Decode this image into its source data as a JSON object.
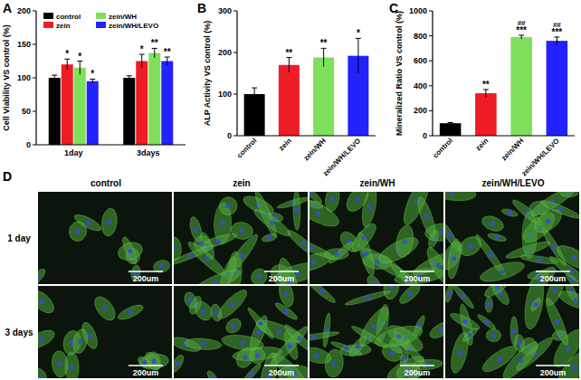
{
  "chart_data": [
    {
      "type": "bar",
      "title": "A",
      "y_label": "Cell Viability VS control (%)",
      "categories": [
        "1day",
        "3days"
      ],
      "series": [
        {
          "name": "control",
          "color": "#000000",
          "values": [
            100,
            100
          ],
          "errors": [
            4,
            3
          ],
          "annotations": [
            null,
            null
          ]
        },
        {
          "name": "zein",
          "color": "#ee1c25",
          "values": [
            120,
            125
          ],
          "errors": [
            8,
            10
          ],
          "annotations": [
            "*",
            "*"
          ]
        },
        {
          "name": "zein/WH",
          "color": "#7ee05a",
          "values": [
            115,
            137
          ],
          "errors": [
            10,
            7
          ],
          "annotations": [
            "*",
            "**"
          ]
        },
        {
          "name": "zein/WH/LEVO",
          "color": "#2222ff",
          "values": [
            95,
            125
          ],
          "errors": [
            3,
            6
          ],
          "annotations": [
            "*",
            "**"
          ]
        }
      ],
      "ylim": [
        0,
        200
      ],
      "yticks": [
        0,
        50,
        100,
        150,
        200
      ],
      "legend": "top-left"
    },
    {
      "type": "bar",
      "title": "B",
      "y_label": "ALP Activity VS control (%)",
      "categories": [
        "control",
        "zein",
        "zein/WH",
        "zein/WH/LEVO"
      ],
      "values": [
        100,
        170,
        188,
        192
      ],
      "errors": [
        15,
        18,
        22,
        42
      ],
      "colors": [
        "#000000",
        "#ee1c25",
        "#7ee05a",
        "#2222ff"
      ],
      "annotations": [
        null,
        "**",
        "**",
        "*"
      ],
      "ylim": [
        0,
        300
      ],
      "yticks": [
        0,
        100,
        200,
        300
      ]
    },
    {
      "type": "bar",
      "title": "C",
      "y_label": "Mineralized Ratio VS control (%)",
      "categories": [
        "control",
        "zein",
        "zein/WH",
        "zein/WH/LEVO"
      ],
      "values": [
        100,
        340,
        790,
        760
      ],
      "errors": [
        5,
        30,
        15,
        30
      ],
      "colors": [
        "#000000",
        "#ee1c25",
        "#7ee05a",
        "#2222ff"
      ],
      "annotations": [
        null,
        "**",
        "***",
        "***"
      ],
      "second_annotations": [
        null,
        null,
        "##",
        "##"
      ],
      "ylim": [
        0,
        1000
      ],
      "yticks": [
        0,
        200,
        400,
        600,
        800,
        1000
      ]
    }
  ],
  "panel_d": {
    "title": "D",
    "columns": [
      "control",
      "zein",
      "zein/WH",
      "zein/WH/LEVO"
    ],
    "rows": [
      "1 day",
      "3 days"
    ],
    "scale_bar": "200um"
  }
}
